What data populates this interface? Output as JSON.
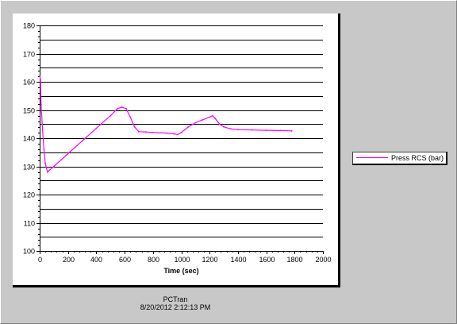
{
  "chart_data": {
    "type": "line",
    "xlabel": "Time (sec)",
    "ylabel": "",
    "xlim": [
      0,
      2000
    ],
    "ylim": [
      100,
      180
    ],
    "x_ticks": [
      0,
      200,
      400,
      600,
      800,
      1000,
      1200,
      1400,
      1600,
      1800,
      2000
    ],
    "y_ticks": [
      100,
      110,
      120,
      130,
      140,
      150,
      160,
      170,
      180
    ],
    "grid": "horizontal",
    "legend": "right",
    "series": [
      {
        "name": "Press RCS (bar)",
        "color": "#ff00ff",
        "points": [
          [
            0,
            162
          ],
          [
            5,
            161
          ],
          [
            10,
            152
          ],
          [
            20,
            143
          ],
          [
            30,
            136
          ],
          [
            40,
            131
          ],
          [
            55,
            128
          ],
          [
            100,
            130
          ],
          [
            200,
            134.5
          ],
          [
            300,
            139
          ],
          [
            400,
            143.5
          ],
          [
            500,
            148
          ],
          [
            550,
            150.5
          ],
          [
            580,
            151
          ],
          [
            610,
            150.5
          ],
          [
            640,
            147.5
          ],
          [
            670,
            144
          ],
          [
            700,
            142.3
          ],
          [
            750,
            142.2
          ],
          [
            800,
            142
          ],
          [
            900,
            141.8
          ],
          [
            950,
            141.5
          ],
          [
            975,
            141.3
          ],
          [
            1000,
            142
          ],
          [
            1050,
            144
          ],
          [
            1100,
            145.5
          ],
          [
            1150,
            146.5
          ],
          [
            1200,
            147.5
          ],
          [
            1220,
            148
          ],
          [
            1240,
            147
          ],
          [
            1270,
            145
          ],
          [
            1300,
            144
          ],
          [
            1350,
            143.3
          ],
          [
            1400,
            143
          ],
          [
            1500,
            142.9
          ],
          [
            1600,
            142.8
          ],
          [
            1700,
            142.7
          ],
          [
            1780,
            142.6
          ]
        ]
      }
    ]
  },
  "footer": {
    "app": "PCTran",
    "timestamp": "8/20/2012 2:12:13 PM"
  }
}
